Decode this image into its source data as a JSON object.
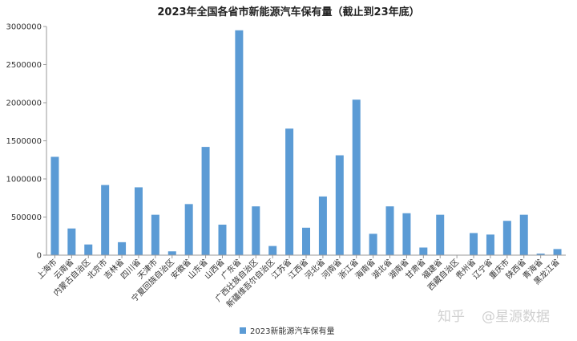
{
  "chart_data": {
    "type": "bar",
    "title": "2023年全国各省市新能源汽车保有量（截止到23年底）",
    "xlabel": "",
    "ylabel": "",
    "ylim": [
      0,
      3000000
    ],
    "yticks": [
      0,
      500000,
      1000000,
      1500000,
      2000000,
      2500000,
      3000000
    ],
    "grid": false,
    "legend_position": "bottom-center",
    "bar_color": "#5b9bd5",
    "categories": [
      "上海市",
      "云南省",
      "内蒙古自治区",
      "北京市",
      "吉林省",
      "四川省",
      "天津市",
      "宁夏回族自治区",
      "安徽省",
      "山东省",
      "山西省",
      "广东省",
      "广西壮族自治区",
      "新疆维吾尔自治区",
      "江苏省",
      "江西省",
      "河北省",
      "河南省",
      "浙江省",
      "海南省",
      "湖北省",
      "湖南省",
      "甘肃省",
      "福建省",
      "西藏自治区",
      "贵州省",
      "辽宁省",
      "重庆市",
      "陕西省",
      "青海省",
      "黑龙江省"
    ],
    "series": [
      {
        "name": "2023新能源汽车保有量",
        "values": [
          1290000,
          350000,
          140000,
          920000,
          170000,
          890000,
          530000,
          50000,
          670000,
          1420000,
          400000,
          2950000,
          640000,
          120000,
          1660000,
          360000,
          770000,
          1310000,
          2040000,
          280000,
          640000,
          550000,
          100000,
          530000,
          5000,
          290000,
          270000,
          450000,
          530000,
          20000,
          80000
        ]
      }
    ]
  },
  "watermark": {
    "platform": "知乎",
    "author": "@星源数据"
  }
}
